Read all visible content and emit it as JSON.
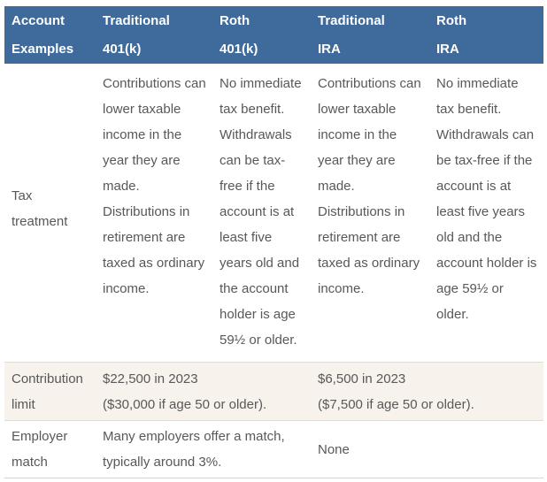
{
  "colors": {
    "header_bg": "#3f6b9c",
    "header_text": "#ffffff",
    "body_text": "#58585a",
    "highlight_row_bg": "#f7f2ec",
    "row_border": "#d6d6d6"
  },
  "header": {
    "cells": [
      {
        "line1": "Account",
        "line2": "Examples"
      },
      {
        "line1": "Traditional",
        "line2": "401(k)"
      },
      {
        "line1": "Roth",
        "line2": "401(k)"
      },
      {
        "line1": "Traditional",
        "line2": "IRA"
      },
      {
        "line1": "Roth",
        "line2": "IRA"
      }
    ]
  },
  "rows": {
    "tax_treatment": {
      "label": "Tax treatment",
      "traditional_401k": "Contributions can lower taxable income in the year they are made. Distributions in retirement are taxed as ordinary income.",
      "roth_401k": "No immediate tax benefit. Withdrawals can be tax-free if the account is at least five years old and the account holder is age 59½ or older.",
      "traditional_ira": "Contributions can lower taxable income in the year they are made. Distributions in retirement are taxed as ordinary income.",
      "roth_ira": "No immediate tax benefit. Withdrawals can be tax-free if the account is at least five years old and the account holder is age 59½ or older."
    },
    "contribution_limit": {
      "label": "Contribution limit",
      "k401": {
        "line1": "$22,500 in 2023",
        "line2": "($30,000 if age 50 or older)."
      },
      "ira": {
        "line1": "$6,500 in 2023",
        "line2": "($7,500 if age 50 or older)."
      }
    },
    "employer_match": {
      "label": "Employer match",
      "k401": {
        "line1": "Many employers offer a match,",
        "line2": "typically around 3%."
      },
      "ira": "None"
    }
  }
}
